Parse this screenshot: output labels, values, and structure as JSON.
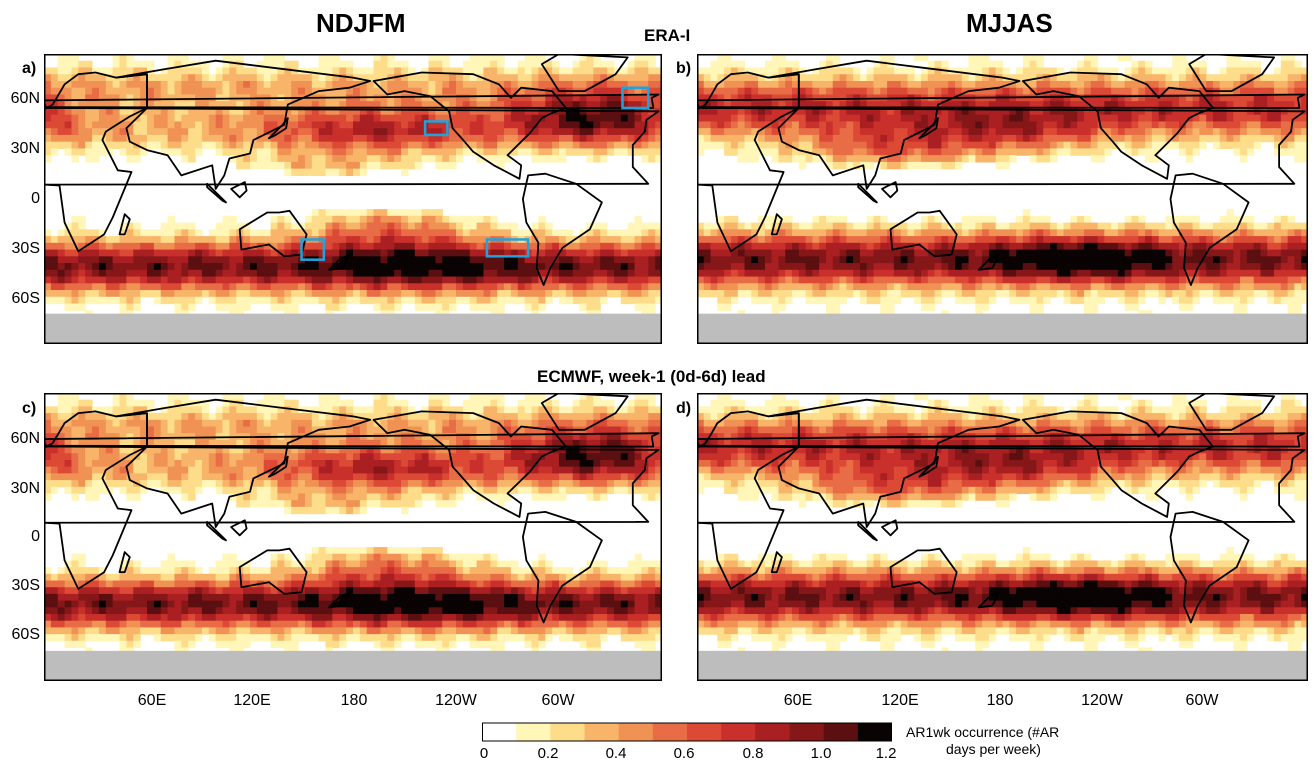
{
  "titles": {
    "left_column": "NDJFM",
    "right_column": "MJJAS",
    "top_row": "ERA-I",
    "bottom_row": "ECMWF, week-1 (0d-6d) lead"
  },
  "panels": [
    {
      "letter": "a)",
      "season": "NDJFM",
      "source": "ERA-I"
    },
    {
      "letter": "b)",
      "season": "MJJAS",
      "source": "ERA-I"
    },
    {
      "letter": "c)",
      "season": "NDJFM",
      "source": "ECMWF week-1"
    },
    {
      "letter": "d)",
      "season": "MJJAS",
      "source": "ECMWF week-1"
    }
  ],
  "lat_labels": [
    "60N",
    "30N",
    "0",
    "30S",
    "60S"
  ],
  "lon_labels_left": [
    "60E",
    "120E",
    "180",
    "120W",
    "60W"
  ],
  "lon_labels_right": [
    "60E",
    "120E",
    "180",
    "120W",
    "60W"
  ],
  "colorbar": {
    "ticks": [
      "0",
      "0.2",
      "0.4",
      "0.6",
      "0.8",
      "1.0",
      "1.2"
    ],
    "colors": [
      "#ffffff",
      "#fff6b8",
      "#fddc8a",
      "#f8b56a",
      "#f19255",
      "#e86c45",
      "#dc4a36",
      "#c9302b",
      "#aa1f22",
      "#861719",
      "#5c0f10",
      "#0a0303"
    ],
    "label_line1": "AR1wk occurrence (#AR",
    "label_line2": "days per week)"
  },
  "boxes_color": "#1fa3dc",
  "land_mask_color": "#bdbdbd"
}
